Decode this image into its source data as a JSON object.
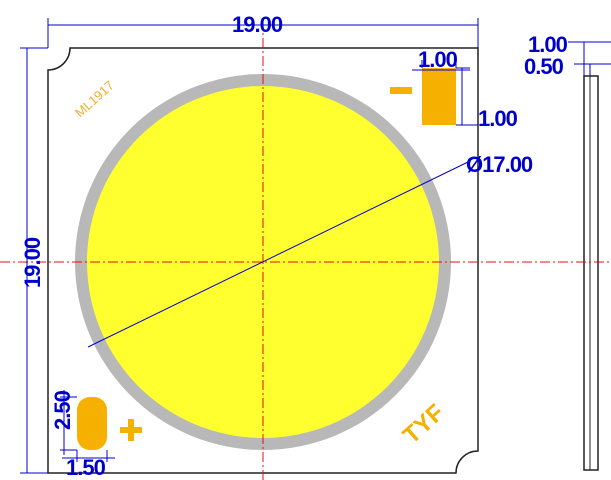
{
  "labels": {
    "width": "19.00",
    "height": "19.00",
    "pad_width": "1.00",
    "pad_height": "1.00",
    "diameter": "Ø17.00",
    "pad2_height": "2.50",
    "pad2_width": "1.50",
    "side_thickness": "1.00",
    "side_offset": "0.50",
    "model": "ML1917",
    "brand": "TYF"
  }
}
